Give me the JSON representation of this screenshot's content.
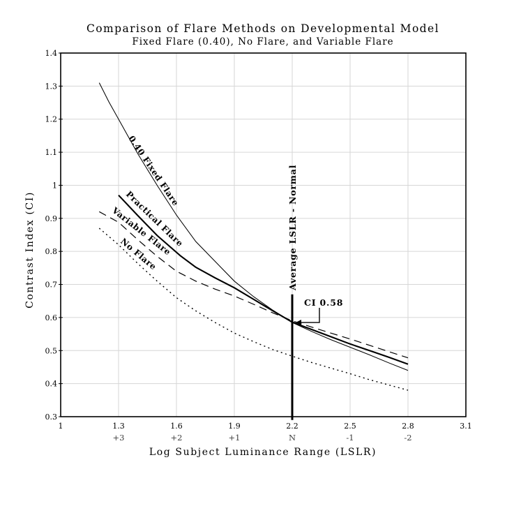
{
  "chart_data": {
    "type": "line",
    "title": "Comparison of Flare Methods on Developmental Model",
    "subtitle": "Fixed Flare (0.40), No Flare, and Variable Flare",
    "xlabel": "Log Subject Luminance Range (LSLR)",
    "ylabel": "Contrast Index (CI)",
    "xlim": [
      1,
      3.1
    ],
    "ylim": [
      0.3,
      1.4
    ],
    "grid": true,
    "x_ticks": [
      {
        "v": 1,
        "label": "1"
      },
      {
        "v": 1.3,
        "label": "1.3"
      },
      {
        "v": 1.6,
        "label": "1.6"
      },
      {
        "v": 1.9,
        "label": "1.9"
      },
      {
        "v": 2.2,
        "label": "2.2"
      },
      {
        "v": 2.5,
        "label": "2.5"
      },
      {
        "v": 2.8,
        "label": "2.8"
      },
      {
        "v": 3.1,
        "label": "3.1"
      }
    ],
    "x_secondary_labels": [
      {
        "v": 1.3,
        "label": "+3"
      },
      {
        "v": 1.6,
        "label": "+2"
      },
      {
        "v": 1.9,
        "label": "+1"
      },
      {
        "v": 2.2,
        "label": "N"
      },
      {
        "v": 2.5,
        "label": "-1"
      },
      {
        "v": 2.8,
        "label": "-2"
      }
    ],
    "y_ticks": [
      {
        "v": 0.3,
        "label": "0.3"
      },
      {
        "v": 0.4,
        "label": "0.4"
      },
      {
        "v": 0.5,
        "label": "0.5"
      },
      {
        "v": 0.6,
        "label": "0.6"
      },
      {
        "v": 0.7,
        "label": "0.7"
      },
      {
        "v": 0.8,
        "label": "0.8"
      },
      {
        "v": 0.9,
        "label": "0.9"
      },
      {
        "v": 1,
        "label": "1"
      },
      {
        "v": 1.1,
        "label": "1.1"
      },
      {
        "v": 1.2,
        "label": "1.2"
      },
      {
        "v": 1.3,
        "label": "1.3"
      },
      {
        "v": 1.4,
        "label": "1.4"
      }
    ],
    "series": [
      {
        "name": "0.40 Fixed Flare",
        "style": "solid-thin",
        "points": [
          [
            1.2,
            1.31
          ],
          [
            1.25,
            1.252
          ],
          [
            1.3,
            1.2
          ],
          [
            1.4,
            1.095
          ],
          [
            1.5,
            1.0
          ],
          [
            1.6,
            0.91
          ],
          [
            1.7,
            0.83
          ],
          [
            1.8,
            0.77
          ],
          [
            1.9,
            0.71
          ],
          [
            2.0,
            0.663
          ],
          [
            2.1,
            0.622
          ],
          [
            2.2,
            0.585
          ],
          [
            2.3,
            0.558
          ],
          [
            2.4,
            0.533
          ],
          [
            2.5,
            0.51
          ],
          [
            2.6,
            0.487
          ],
          [
            2.7,
            0.463
          ],
          [
            2.8,
            0.44
          ]
        ]
      },
      {
        "name": "Practical Flare",
        "style": "solid-thick",
        "points": [
          [
            1.3,
            0.97
          ],
          [
            1.4,
            0.908
          ],
          [
            1.5,
            0.848
          ],
          [
            1.62,
            0.787
          ],
          [
            1.7,
            0.752
          ],
          [
            1.8,
            0.72
          ],
          [
            1.9,
            0.69
          ],
          [
            2.0,
            0.655
          ],
          [
            2.1,
            0.62
          ],
          [
            2.2,
            0.586
          ],
          [
            2.3,
            0.564
          ],
          [
            2.4,
            0.542
          ],
          [
            2.5,
            0.52
          ],
          [
            2.6,
            0.5
          ],
          [
            2.7,
            0.48
          ],
          [
            2.8,
            0.459
          ]
        ]
      },
      {
        "name": "Variable Flare",
        "style": "dashed",
        "points": [
          [
            1.2,
            0.92
          ],
          [
            1.3,
            0.888
          ],
          [
            1.4,
            0.835
          ],
          [
            1.5,
            0.785
          ],
          [
            1.6,
            0.74
          ],
          [
            1.7,
            0.71
          ],
          [
            1.8,
            0.686
          ],
          [
            1.9,
            0.665
          ],
          [
            2.0,
            0.64
          ],
          [
            2.1,
            0.614
          ],
          [
            2.2,
            0.59
          ],
          [
            2.3,
            0.571
          ],
          [
            2.4,
            0.553
          ],
          [
            2.5,
            0.535
          ],
          [
            2.6,
            0.516
          ],
          [
            2.7,
            0.497
          ],
          [
            2.8,
            0.478
          ]
        ]
      },
      {
        "name": "No Flare",
        "style": "dotted",
        "points": [
          [
            1.2,
            0.87
          ],
          [
            1.3,
            0.82
          ],
          [
            1.4,
            0.763
          ],
          [
            1.5,
            0.71
          ],
          [
            1.6,
            0.66
          ],
          [
            1.7,
            0.62
          ],
          [
            1.8,
            0.585
          ],
          [
            1.9,
            0.553
          ],
          [
            2.0,
            0.527
          ],
          [
            2.1,
            0.503
          ],
          [
            2.2,
            0.483
          ],
          [
            2.3,
            0.464
          ],
          [
            2.4,
            0.447
          ],
          [
            2.5,
            0.43
          ],
          [
            2.6,
            0.412
          ],
          [
            2.7,
            0.396
          ],
          [
            2.8,
            0.38
          ]
        ]
      }
    ],
    "marker": {
      "label": "Average LSLR - Normal",
      "x": 2.2,
      "ci_top": 0.67,
      "ci_bottom": 0.29
    },
    "annotation": {
      "label": "CI 0.58",
      "point": {
        "x": 2.2,
        "ci": 0.585
      }
    },
    "colors": {
      "line": "#000000",
      "grid": "#d6d6d6",
      "secondary_labels": "#3f3f3f",
      "background": "#ffffff"
    },
    "legend_position": "inline-curve-labels"
  }
}
